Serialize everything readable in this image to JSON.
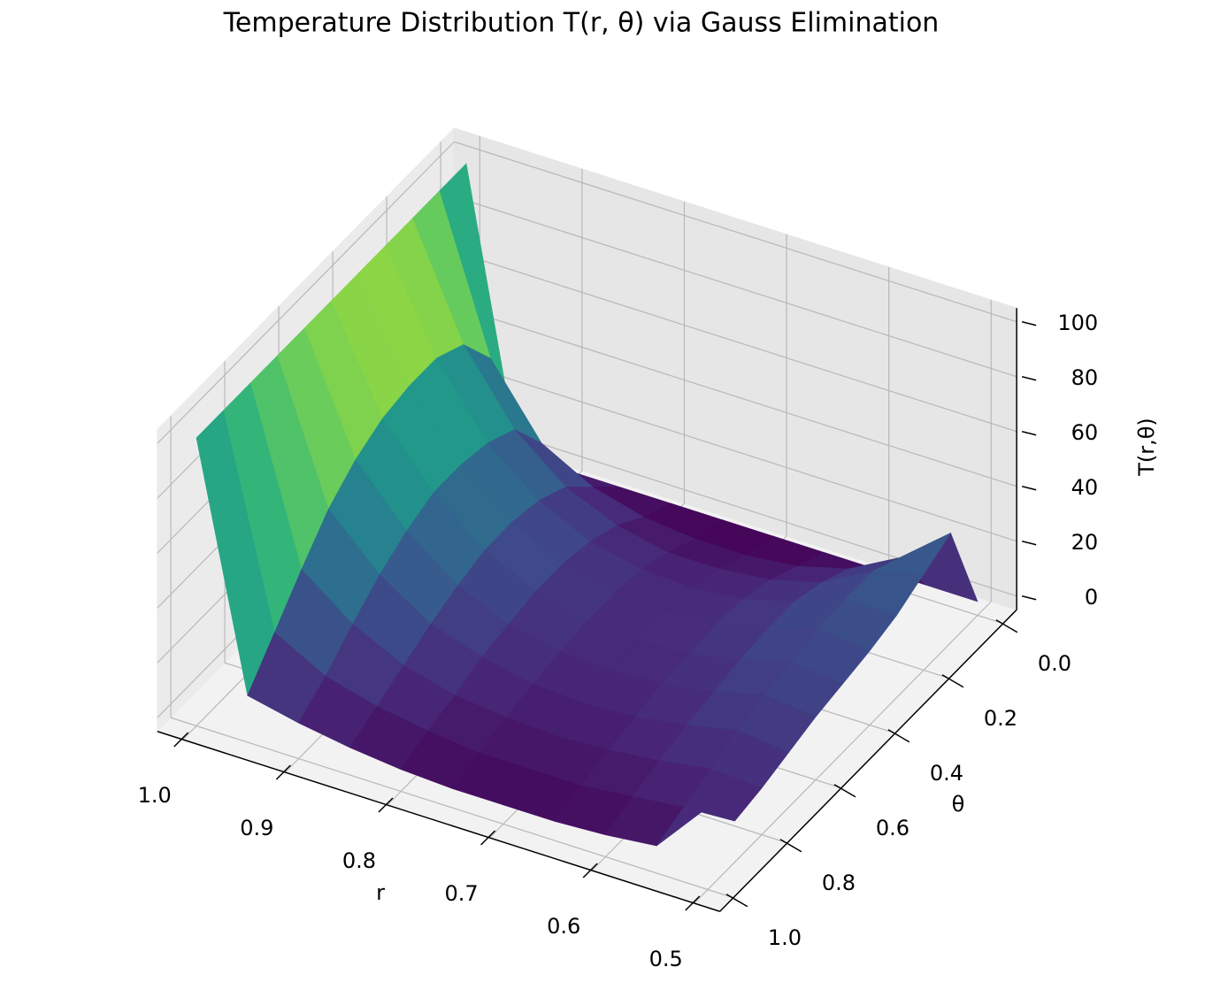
{
  "chart_data": {
    "type": "surface3d",
    "title": "Temperature Distribution T(r, θ) via Gauss Elimination",
    "xlabel": "r",
    "ylabel": "θ",
    "zlabel": "T(r,θ)",
    "colormap": "viridis",
    "x": [
      0.5,
      0.55,
      0.6,
      0.65,
      0.7,
      0.75,
      0.8,
      0.85,
      0.9,
      0.95,
      1.0
    ],
    "y": [
      0,
      0.1,
      0.2,
      0.3,
      0.4,
      0.5,
      0.6,
      0.7,
      0.8,
      0.9,
      1.0
    ],
    "z": [
      [
        0,
        0,
        0,
        0,
        0,
        0,
        0,
        0,
        0,
        0,
        100
      ],
      [
        35,
        20,
        10,
        5,
        3,
        3,
        5,
        10,
        20,
        45,
        100
      ],
      [
        30,
        25,
        15,
        10,
        8,
        8,
        12,
        20,
        35,
        60,
        100
      ],
      [
        25,
        25,
        18,
        13,
        11,
        12,
        16,
        25,
        40,
        65,
        100
      ],
      [
        22,
        24,
        18,
        14,
        12,
        13,
        18,
        27,
        42,
        65,
        100
      ],
      [
        20,
        22,
        17,
        13,
        12,
        13,
        18,
        27,
        42,
        63,
        100
      ],
      [
        18,
        20,
        15,
        12,
        11,
        12,
        16,
        24,
        38,
        58,
        100
      ],
      [
        15,
        17,
        13,
        10,
        9,
        10,
        14,
        20,
        32,
        50,
        100
      ],
      [
        12,
        13,
        10,
        8,
        7,
        8,
        10,
        15,
        24,
        38,
        100
      ],
      [
        10,
        9,
        7,
        5,
        5,
        5,
        7,
        10,
        15,
        25,
        100
      ],
      [
        25,
        5,
        3,
        2,
        2,
        2,
        3,
        5,
        8,
        12,
        100
      ]
    ],
    "xlim": [
      0.5,
      1.0
    ],
    "ylim": [
      0,
      1.0
    ],
    "zlim": [
      0,
      100
    ],
    "xticks": [
      0.5,
      0.6,
      0.7,
      0.8,
      0.9,
      {
        "value": 1,
        "label": "1.0"
      }
    ],
    "yticks": [
      {
        "value": 0,
        "label": "0.0"
      },
      0.2,
      0.4,
      0.6,
      0.8,
      {
        "value": 1,
        "label": "1.0"
      }
    ],
    "zticks": [
      0,
      20,
      40,
      60,
      80,
      100
    ],
    "grid": true
  }
}
